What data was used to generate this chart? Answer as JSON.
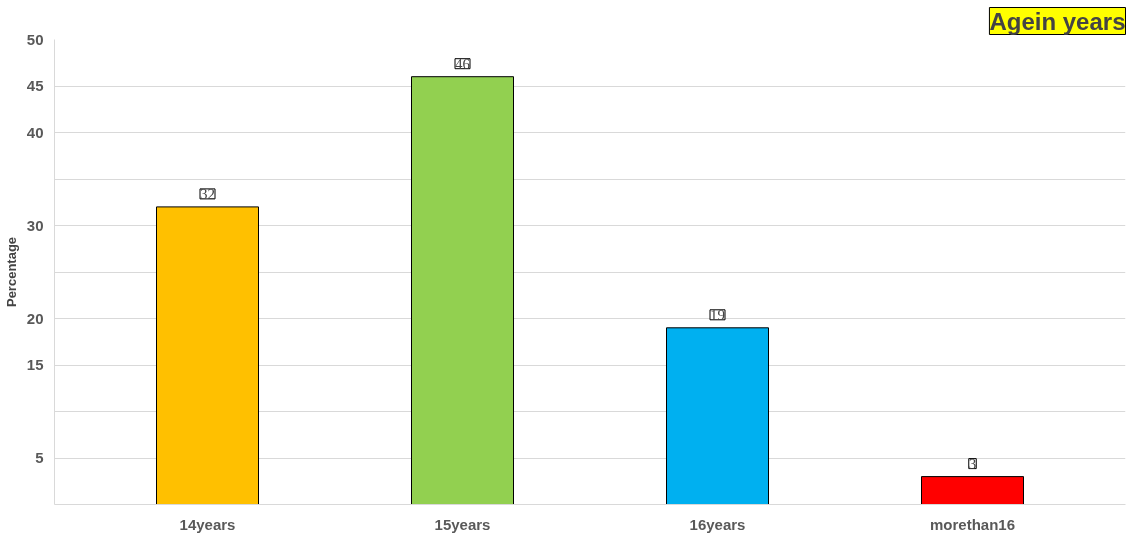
{
  "chart_data": {
    "type": "bar",
    "title": "Agein years",
    "ylabel": "Percentage",
    "categories": [
      "14years",
      "15years",
      "16years",
      "morethan16"
    ],
    "values": [
      32,
      46,
      19,
      3
    ],
    "colors": [
      "#ffc000",
      "#92d050",
      "#00b0f0",
      "#ff0000"
    ],
    "ylim": [
      0,
      50
    ],
    "yticks": [
      {
        "value": 0,
        "label": null
      },
      5,
      {
        "value": 10,
        "label": null
      },
      15,
      20,
      {
        "value": 25,
        "label": null
      },
      30,
      {
        "value": 35,
        "label": null
      },
      40,
      45,
      50
    ],
    "grid": "y",
    "data_labels": true
  }
}
